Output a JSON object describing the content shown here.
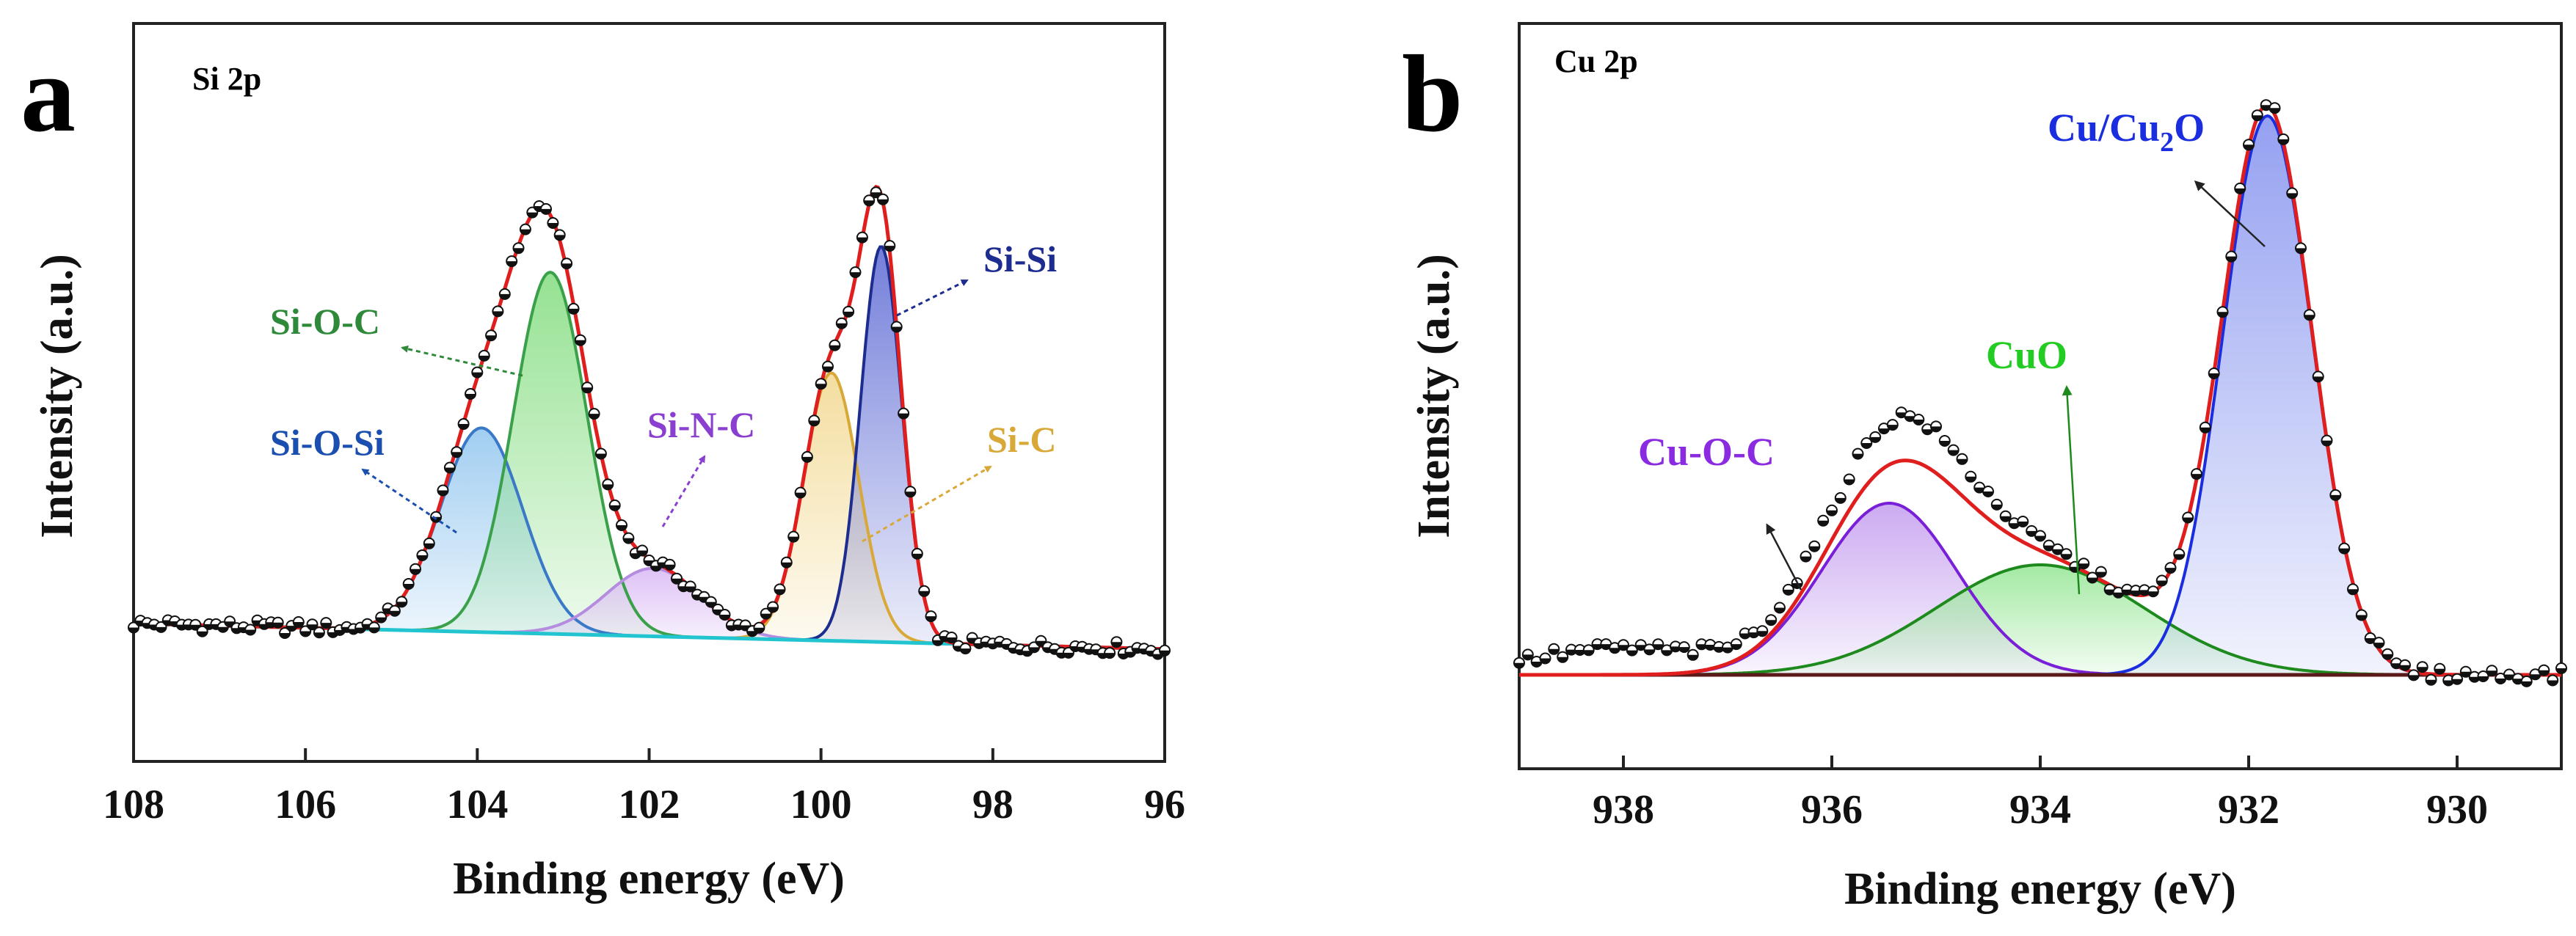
{
  "panels": {
    "a": {
      "letter": "a",
      "title": "Si 2p",
      "ylabel": "Intensity (a.u.)",
      "xlabel": "Binding energy (eV)",
      "labels": {
        "sisi": "Si-Si",
        "sic": "Si-C",
        "sinc": "Si-N-C",
        "sioc": "Si-O-C",
        "siosi": "Si-O-Si"
      }
    },
    "b": {
      "letter": "b",
      "title": "Cu 2p",
      "ylabel": "Intensity (a.u.)",
      "xlabel": "Binding energy (eV)",
      "labels": {
        "cu_cu2o_main": "Cu/Cu",
        "cu_cu2o_sub": "2",
        "cu_cu2o_tail": "O",
        "cuo": "CuO",
        "cuoc": "Cu-O-C"
      }
    }
  },
  "chart_data": [
    {
      "type": "line",
      "title": "Si 2p",
      "xlabel": "Binding energy (eV)",
      "ylabel": "Intensity (a.u.)",
      "xlim": [
        108,
        96
      ],
      "ylim": [
        -0.35,
        1.28
      ],
      "xticks": [
        108,
        106,
        104,
        102,
        100,
        98,
        96
      ],
      "baseline": {
        "x0": 108,
        "y0": 0.0,
        "x1": 96,
        "y1": -0.06
      },
      "components": [
        {
          "name": "Si-O-Si",
          "center": 103.95,
          "height": 0.48,
          "sigma": 0.48,
          "color": "#3a78c8",
          "fill": "#9ccbf0"
        },
        {
          "name": "Si-O-C",
          "center": 103.15,
          "height": 0.85,
          "sigma": 0.43,
          "color": "#3aa14a",
          "fill": "#8fe08c"
        },
        {
          "name": "Si-N-C",
          "center": 101.95,
          "height": 0.16,
          "sigma": 0.55,
          "color": "#b58de0",
          "fill": "#dcbef5"
        },
        {
          "name": "Si-C",
          "center": 99.88,
          "height": 0.63,
          "sigma": 0.32,
          "color": "#d8a838",
          "fill": "#f3dc9a"
        },
        {
          "name": "Si-Si",
          "center": 99.3,
          "height": 0.93,
          "sigma": 0.24,
          "color": "#1d2c8f",
          "fill": "#6c78d8"
        }
      ],
      "series": [
        {
          "name": "Envelope",
          "color": "#e01e1e"
        },
        {
          "name": "Experimental",
          "marker": "half-filled circle",
          "x_range": [
            108,
            96
          ]
        }
      ]
    },
    {
      "type": "line",
      "title": "Cu 2p",
      "xlabel": "Binding energy (eV)",
      "ylabel": "Intensity (a.u.)",
      "xlim": [
        939,
        929
      ],
      "ylim": [
        -0.2,
        1.37
      ],
      "xticks": [
        938,
        936,
        934,
        932,
        930
      ],
      "baseline": {
        "x0": 939,
        "y0": 0.0,
        "x1": 929,
        "y1": 0.0
      },
      "components": [
        {
          "name": "Cu-O-C",
          "center": 935.45,
          "height": 0.39,
          "sigma": 0.65,
          "color": "#7a1fd8",
          "fill": "#c9a6f0"
        },
        {
          "name": "CuO",
          "center": 934.0,
          "height": 0.25,
          "sigma": 1.0,
          "color": "#1e8a1e",
          "fill": "#9ee89e"
        },
        {
          "name": "Cu/Cu2O",
          "center": 931.82,
          "height": 1.27,
          "sigma": 0.43,
          "color": "#1a2ee0",
          "fill": "#8f9cf0"
        }
      ],
      "series": [
        {
          "name": "Envelope",
          "color": "#e01e1e"
        },
        {
          "name": "Experimental",
          "marker": "half-filled circle",
          "x_range": [
            939,
            929
          ]
        }
      ]
    }
  ]
}
